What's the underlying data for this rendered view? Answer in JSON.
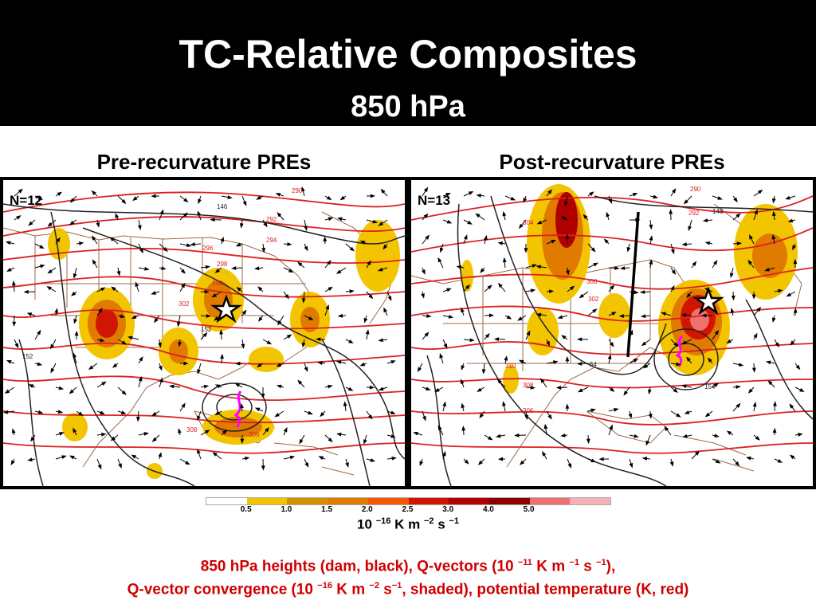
{
  "title": "TC-Relative Composites",
  "subtitle": "850 hPa",
  "panels": [
    {
      "title": "Pre-recurvature PREs",
      "n_label": "N=12"
    },
    {
      "title": "Post-recurvature PREs",
      "n_label": "N=13"
    }
  ],
  "colorbar": {
    "colors": [
      "#ffffff",
      "#f2c500",
      "#d58f00",
      "#e07b00",
      "#f25a00",
      "#d01500",
      "#b00000",
      "#8a0000",
      "#f07070",
      "#f5b0b8"
    ],
    "tick_labels": [
      "0.5",
      "1.0",
      "1.5",
      "2.0",
      "2.5",
      "3.0",
      "4.0",
      "5.0"
    ],
    "units": {
      "base": "10",
      "exp1": "−16",
      "mid1": " K m",
      "exp2": "−2",
      "mid2": " s",
      "exp3": "−1"
    }
  },
  "caption": {
    "line1": {
      "a": "850 hPa heights (dam, black), Q-vectors (10",
      "e1": "−11",
      "b": " K m",
      "e2": "−1",
      "c": " s",
      "e3": "−1",
      "d": "),"
    },
    "line2": {
      "a": "Q-vector convergence (10",
      "e1": "−16",
      "b": " K m",
      "e2": "−2",
      "c": " s",
      "e3": "−1",
      "d": ", shaded), potential temperature (K, red)"
    }
  },
  "map_labels": {
    "left": [
      "290",
      "292",
      "294",
      "296",
      "298",
      "300",
      "302",
      "146",
      "152",
      "152",
      "306",
      "308"
    ],
    "right": [
      "290",
      "292",
      "148",
      "300",
      "302",
      "304",
      "306",
      "308",
      "310",
      "54",
      "154"
    ]
  },
  "colors": {
    "banner": "#000000",
    "caption": "#d00000",
    "theta": "#dd2020",
    "height": "#222222",
    "coast": "#9b6a4a",
    "track": "#ff00ff"
  }
}
